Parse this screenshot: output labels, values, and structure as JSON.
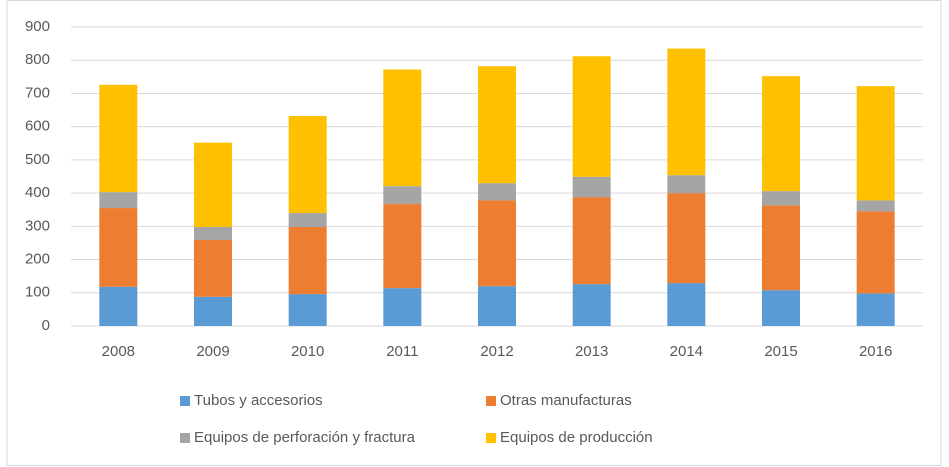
{
  "chart_data": {
    "type": "stacked_bar",
    "categories": [
      "2008",
      "2009",
      "2010",
      "2011",
      "2012",
      "2013",
      "2014",
      "2015",
      "2016"
    ],
    "series": [
      {
        "name": "Tubos y accesorios",
        "color": "#5b9bd5",
        "values": [
          118,
          88,
          96,
          114,
          120,
          126,
          129,
          108,
          98
        ]
      },
      {
        "name": "Otras manufacturas",
        "color": "#ed7d31",
        "values": [
          237,
          171,
          202,
          253,
          258,
          262,
          271,
          255,
          247
        ]
      },
      {
        "name": "Equipos de perforación y fractura",
        "color": "#a5a5a5",
        "values": [
          48,
          39,
          42,
          54,
          52,
          61,
          54,
          43,
          33
        ]
      },
      {
        "name": "Equipos de producción",
        "color": "#ffc000",
        "values": [
          323,
          254,
          292,
          351,
          352,
          363,
          381,
          346,
          344
        ]
      }
    ],
    "ylim": [
      0,
      900
    ],
    "yticks": [
      0,
      100,
      200,
      300,
      400,
      500,
      600,
      700,
      800,
      900
    ],
    "grid": true,
    "legend": "bottom"
  }
}
